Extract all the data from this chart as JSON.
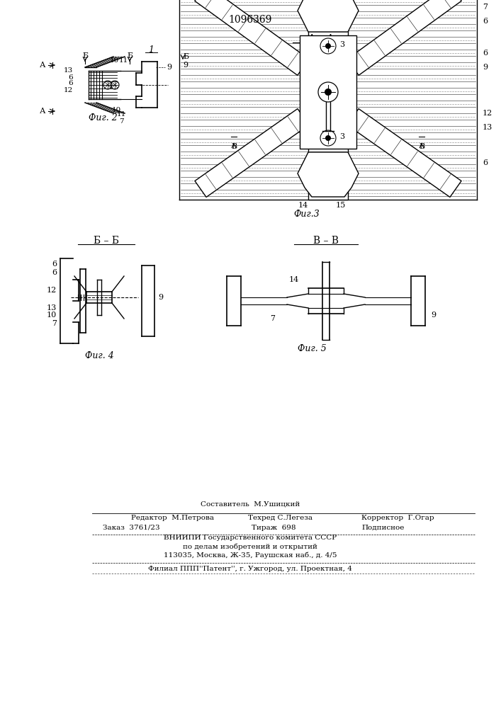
{
  "patent_number": "1096369",
  "bg_color": "#ffffff",
  "line_color": "#000000",
  "fig2_label": "Фиг. 2",
  "fig3_label": "Фиг.3",
  "fig4_label": "Фиг. 4",
  "fig5_label": "Фиг. 5",
  "footer1": "Составитель  М.Ушицкий",
  "footer2a": "Редактор  М.Петрова",
  "footer2b": "Техред С.Легеза",
  "footer2c": "Корректор  Г.Огар",
  "footer3a": "Заказ  3761/23",
  "footer3b": "Тираж  698",
  "footer3c": "Подписное",
  "footer4": "ВНИИПИ Государственного комитета СССР",
  "footer5": "по делам изобретений и открытий",
  "footer6": "113035, Москва, Ж-35, Раушская наб., д. 4/5",
  "footer7": "Филиал ППП''Патент'', г. Ужгород, ул. Проектная, 4"
}
